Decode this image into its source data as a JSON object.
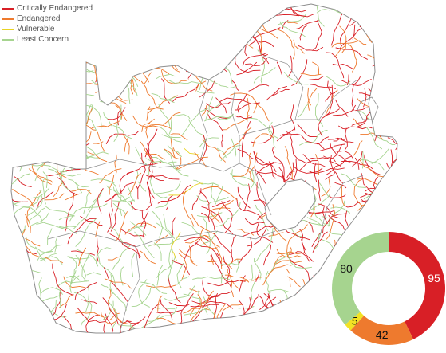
{
  "legend": {
    "items": [
      {
        "label": "Critically Endangered",
        "color": "#d81f26"
      },
      {
        "label": "Endangered",
        "color": "#ee7a2e"
      },
      {
        "label": "Vulnerable",
        "color": "#e8d324"
      },
      {
        "label": "Least Concern",
        "color": "#a6d48f"
      }
    ]
  },
  "map": {
    "boundary_color": "#9a9a9a"
  },
  "chart_data": {
    "type": "pie",
    "categories": [
      "Critically Endangered",
      "Endangered",
      "Vulnerable",
      "Least Concern"
    ],
    "values": [
      95,
      42,
      5,
      80
    ],
    "labels": [
      "95",
      "42",
      "5",
      "80"
    ],
    "colors": [
      "#d81f26",
      "#ee7a2e",
      "#f2e224",
      "#a6d48f"
    ],
    "donut": true
  }
}
